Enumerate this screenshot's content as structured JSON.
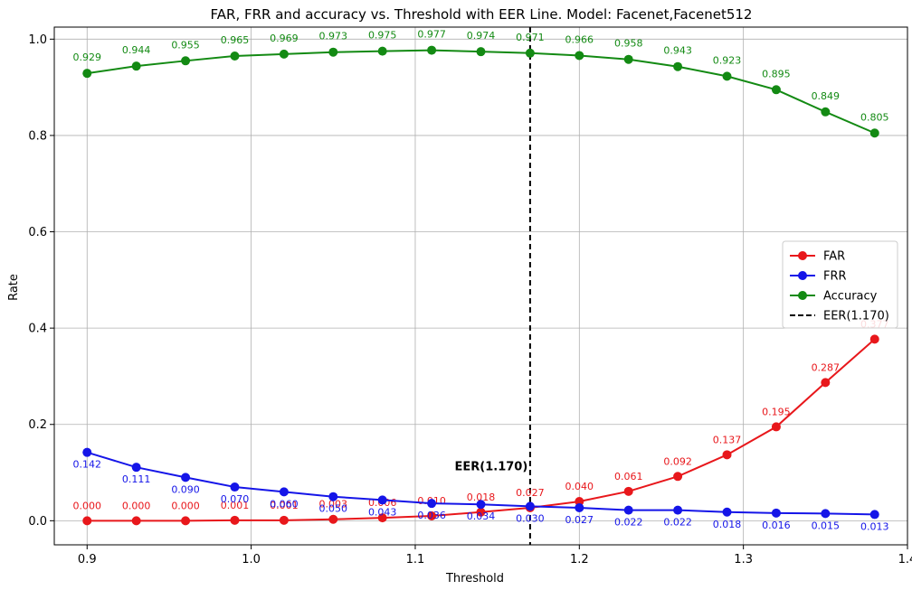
{
  "chart_data": {
    "type": "line",
    "title": "FAR, FRR and accuracy vs. Threshold with EER Line. Model: Facenet,Facenet512",
    "xlabel": "Threshold",
    "ylabel": "Rate",
    "xlim": [
      0.88,
      1.4
    ],
    "ylim": [
      -0.05,
      1.025
    ],
    "xticks": [
      "0.9",
      "1.0",
      "1.1",
      "1.2",
      "1.3",
      "1.4"
    ],
    "xtick_values": [
      0.9,
      1.0,
      1.1,
      1.2,
      1.3,
      1.4
    ],
    "yticks": [
      "0.0",
      "0.2",
      "0.4",
      "0.6",
      "0.8",
      "1.0"
    ],
    "ytick_values": [
      0.0,
      0.2,
      0.4,
      0.6,
      0.8,
      1.0
    ],
    "grid": true,
    "legend_position": "center-right",
    "x": [
      0.9,
      0.93,
      0.96,
      0.99,
      1.02,
      1.05,
      1.08,
      1.11,
      1.14,
      1.17,
      1.2,
      1.23,
      1.26,
      1.29,
      1.32,
      1.35,
      1.38
    ],
    "series": [
      {
        "name": "FAR",
        "color": "#e8171b",
        "values": [
          0.0,
          0.0,
          0.0,
          0.001,
          0.001,
          0.003,
          0.006,
          0.01,
          0.018,
          0.027,
          0.04,
          0.061,
          0.092,
          0.137,
          0.195,
          0.287,
          0.377
        ],
        "labels": [
          "0.000",
          "0.000",
          "0.000",
          "0.001",
          "0.001",
          "0.003",
          "0.006",
          "0.010",
          "0.018",
          "0.027",
          "0.040",
          "0.061",
          "0.092",
          "0.137",
          "0.195",
          "0.287",
          "0.377"
        ]
      },
      {
        "name": "FRR",
        "color": "#1515e8",
        "values": [
          0.142,
          0.111,
          0.09,
          0.07,
          0.06,
          0.05,
          0.043,
          0.036,
          0.034,
          0.03,
          0.027,
          0.022,
          0.022,
          0.018,
          0.016,
          0.015,
          0.013
        ],
        "labels": [
          "0.142",
          "0.111",
          "0.090",
          "0.070",
          "0.060",
          "0.050",
          "0.043",
          "0.036",
          "0.034",
          "0.030",
          "0.027",
          "0.022",
          "0.022",
          "0.018",
          "0.016",
          "0.015",
          "0.013"
        ]
      },
      {
        "name": "Accuracy",
        "color": "#138a13",
        "values": [
          0.929,
          0.944,
          0.955,
          0.965,
          0.969,
          0.973,
          0.975,
          0.977,
          0.974,
          0.971,
          0.966,
          0.958,
          0.943,
          0.923,
          0.895,
          0.849,
          0.805
        ],
        "labels": [
          "0.929",
          "0.944",
          "0.955",
          "0.965",
          "0.969",
          "0.973",
          "0.975",
          "0.977",
          "0.974",
          "0.971",
          "0.966",
          "0.958",
          "0.943",
          "0.923",
          "0.895",
          "0.849",
          "0.805"
        ]
      }
    ],
    "eer": {
      "x": 1.17,
      "legend_label": "EER(1.170)",
      "annotation": "EER(1.170)",
      "annotation_y": 0.105,
      "color": "#000000"
    }
  }
}
